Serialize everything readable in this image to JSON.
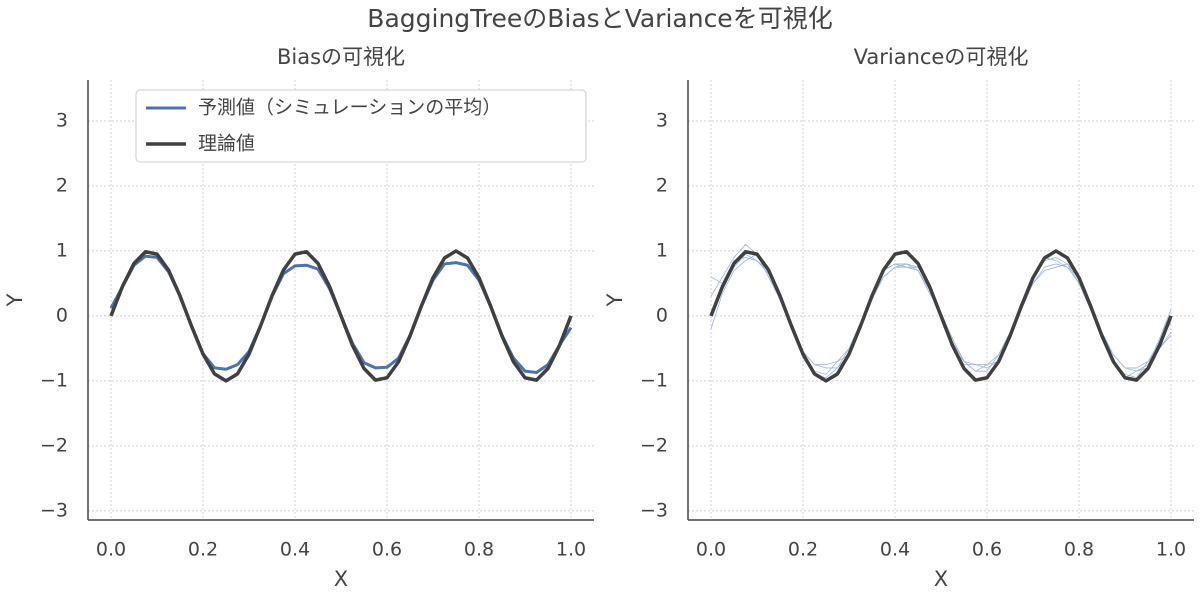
{
  "title": "BaggingTreeのBiasとVarianceを可視化",
  "chart_data": [
    {
      "type": "line",
      "title": "Biasの可視化",
      "xlabel": "X",
      "ylabel": "Y",
      "xlim": [
        -0.05,
        1.05
      ],
      "ylim": [
        -3.14,
        3.63
      ],
      "xticks": [
        {
          "value": 0,
          "label": "0.0"
        },
        0.2,
        0.4,
        0.6,
        0.8,
        {
          "value": 1,
          "label": "1.0"
        }
      ],
      "yticks": [
        {
          "value": -3,
          "label": "−3"
        },
        {
          "value": -2,
          "label": "−2"
        },
        {
          "value": -1,
          "label": "−1"
        },
        0,
        1,
        2,
        3
      ],
      "grid": true,
      "legend": "upper center",
      "x": [
        0,
        0.025,
        0.05,
        0.075,
        0.1,
        0.125,
        0.15,
        0.175,
        0.2,
        0.225,
        0.25,
        0.275,
        0.3,
        0.325,
        0.35,
        0.375,
        0.4,
        0.425,
        0.45,
        0.475,
        0.5,
        0.525,
        0.55,
        0.575,
        0.6,
        0.625,
        0.65,
        0.675,
        0.7,
        0.725,
        0.75,
        0.775,
        0.8,
        0.825,
        0.85,
        0.875,
        0.9,
        0.925,
        0.95,
        0.975,
        1
      ],
      "series": [
        {
          "name": "予測値（シミュレーションの平均）",
          "color": "#4c72b0",
          "linewidth": 3,
          "values": [
            0.12,
            0.45,
            0.78,
            0.92,
            0.9,
            0.68,
            0.3,
            -0.15,
            -0.58,
            -0.8,
            -0.82,
            -0.75,
            -0.55,
            -0.15,
            0.3,
            0.65,
            0.77,
            0.78,
            0.72,
            0.42,
            0.0,
            -0.42,
            -0.72,
            -0.8,
            -0.79,
            -0.65,
            -0.3,
            0.15,
            0.55,
            0.8,
            0.82,
            0.78,
            0.55,
            0.15,
            -0.3,
            -0.65,
            -0.85,
            -0.87,
            -0.75,
            -0.45,
            -0.18
          ]
        },
        {
          "name": "理論値",
          "color": "#404040",
          "linewidth": 3.5,
          "values": [
            0,
            0.454,
            0.809,
            0.988,
            0.951,
            0.707,
            0.309,
            -0.156,
            -0.588,
            -0.891,
            -1,
            -0.891,
            -0.588,
            -0.156,
            0.309,
            0.707,
            0.951,
            0.988,
            0.809,
            0.454,
            0,
            -0.454,
            -0.809,
            -0.988,
            -0.951,
            -0.707,
            -0.309,
            0.156,
            0.588,
            0.891,
            1,
            0.891,
            0.588,
            0.156,
            -0.309,
            -0.707,
            -0.951,
            -0.988,
            -0.809,
            -0.454,
            0
          ]
        }
      ]
    },
    {
      "type": "line",
      "title": "Varianceの可視化",
      "xlabel": "X",
      "ylabel": "Y",
      "xlim": [
        -0.05,
        1.05
      ],
      "ylim": [
        -3.14,
        3.63
      ],
      "xticks": [
        {
          "value": 0,
          "label": "0.0"
        },
        0.2,
        0.4,
        0.6,
        0.8,
        {
          "value": 1,
          "label": "1.0"
        }
      ],
      "yticks": [
        {
          "value": -3,
          "label": "−3"
        },
        {
          "value": -2,
          "label": "−2"
        },
        {
          "value": -1,
          "label": "−1"
        },
        0,
        1,
        2,
        3
      ],
      "grid": true,
      "x": [
        0,
        0.025,
        0.05,
        0.075,
        0.1,
        0.125,
        0.15,
        0.175,
        0.2,
        0.225,
        0.25,
        0.275,
        0.3,
        0.325,
        0.35,
        0.375,
        0.4,
        0.425,
        0.45,
        0.475,
        0.5,
        0.525,
        0.55,
        0.575,
        0.6,
        0.625,
        0.65,
        0.675,
        0.7,
        0.725,
        0.75,
        0.775,
        0.8,
        0.825,
        0.85,
        0.875,
        0.9,
        0.925,
        0.95,
        0.975,
        1
      ],
      "series": [
        {
          "color": "#9fb4da",
          "linewidth": 0.8,
          "values": [
            0.3,
            0.6,
            0.9,
            1.1,
            0.95,
            0.6,
            0.25,
            -0.2,
            -0.6,
            -0.85,
            -0.9,
            -0.7,
            -0.5,
            -0.1,
            0.35,
            0.7,
            0.8,
            0.75,
            0.7,
            0.4,
            0.05,
            -0.4,
            -0.7,
            -0.85,
            -0.75,
            -0.6,
            -0.25,
            0.2,
            0.6,
            0.85,
            0.9,
            0.8,
            0.5,
            0.1,
            -0.35,
            -0.7,
            -0.9,
            -0.95,
            -0.7,
            -0.4,
            -0.1
          ]
        },
        {
          "color": "#9fb4da",
          "linewidth": 0.8,
          "values": [
            -0.2,
            0.35,
            0.7,
            0.85,
            0.95,
            0.75,
            0.35,
            -0.1,
            -0.55,
            -0.75,
            -0.8,
            -0.8,
            -0.6,
            -0.2,
            0.25,
            0.6,
            0.75,
            0.8,
            0.75,
            0.45,
            -0.05,
            -0.45,
            -0.75,
            -0.75,
            -0.8,
            -0.7,
            -0.35,
            0.1,
            0.5,
            0.75,
            0.8,
            0.75,
            0.6,
            0.2,
            -0.25,
            -0.6,
            -0.8,
            -0.85,
            -0.8,
            -0.5,
            -0.3
          ]
        },
        {
          "color": "#9fb4da",
          "linewidth": 0.8,
          "values": [
            0.6,
            0.5,
            0.85,
            0.9,
            0.85,
            0.7,
            0.35,
            -0.15,
            -0.65,
            -0.9,
            -0.95,
            -0.8,
            -0.5,
            -0.15,
            0.3,
            0.7,
            0.8,
            0.8,
            0.7,
            0.35,
            0.05,
            -0.35,
            -0.7,
            -0.85,
            -0.85,
            -0.6,
            -0.3,
            0.15,
            0.6,
            0.9,
            0.85,
            0.75,
            0.5,
            0.2,
            -0.3,
            -0.7,
            -0.95,
            -0.85,
            -0.75,
            -0.35,
            0.1
          ]
        },
        {
          "color": "#9fb4da",
          "linewidth": 0.8,
          "values": [
            0.0,
            0.4,
            0.75,
            0.95,
            0.85,
            0.65,
            0.25,
            -0.2,
            -0.55,
            -0.75,
            -0.75,
            -0.7,
            -0.6,
            -0.15,
            0.3,
            0.6,
            0.75,
            0.75,
            0.75,
            0.5,
            0.0,
            -0.5,
            -0.7,
            -0.75,
            -0.75,
            -0.7,
            -0.3,
            0.15,
            0.5,
            0.7,
            0.75,
            0.8,
            0.6,
            0.1,
            -0.3,
            -0.6,
            -0.8,
            -0.8,
            -0.7,
            -0.5,
            -0.25
          ]
        },
        {
          "color": "#404040",
          "linewidth": 3.5,
          "values": [
            0,
            0.454,
            0.809,
            0.988,
            0.951,
            0.707,
            0.309,
            -0.156,
            -0.588,
            -0.891,
            -1,
            -0.891,
            -0.588,
            -0.156,
            0.309,
            0.707,
            0.951,
            0.988,
            0.809,
            0.454,
            0,
            -0.454,
            -0.809,
            -0.988,
            -0.951,
            -0.707,
            -0.309,
            0.156,
            0.588,
            0.891,
            1,
            0.891,
            0.588,
            0.156,
            -0.309,
            -0.707,
            -0.951,
            -0.988,
            -0.809,
            -0.454,
            0
          ]
        }
      ]
    }
  ]
}
